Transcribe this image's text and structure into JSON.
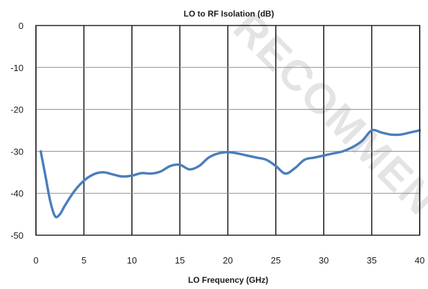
{
  "chart_data": {
    "type": "line",
    "title": "LO to RF Isolation (dB)",
    "xlabel": "LO Frequency (GHz)",
    "ylabel": "",
    "xlim": [
      0,
      40
    ],
    "ylim": [
      -50,
      0
    ],
    "xticks": [
      0,
      5,
      10,
      15,
      20,
      25,
      30,
      35,
      40
    ],
    "yticks": [
      0,
      -10,
      -20,
      -30,
      -40,
      -50
    ],
    "grid": true,
    "series": [
      {
        "color": "#4a7ebb",
        "x": [
          0.5,
          1.0,
          1.5,
          2.0,
          2.5,
          3.0,
          4.0,
          5.0,
          6.0,
          7.0,
          8.0,
          9.0,
          10.0,
          11.0,
          12.0,
          13.0,
          14.0,
          15.0,
          16.0,
          17.0,
          18.0,
          19.0,
          20.0,
          21.0,
          22.0,
          23.0,
          24.0,
          25.0,
          26.0,
          27.0,
          28.0,
          29.0,
          30.0,
          31.0,
          32.0,
          33.0,
          34.0,
          35.0,
          36.0,
          37.0,
          38.0,
          39.0,
          40.0
        ],
        "y": [
          -30,
          -36,
          -42,
          -45.5,
          -45,
          -43,
          -39.5,
          -37,
          -35.5,
          -35,
          -35.5,
          -36,
          -35.8,
          -35.2,
          -35.3,
          -34.8,
          -33.5,
          -33.2,
          -34.3,
          -33.5,
          -31.5,
          -30.5,
          -30.2,
          -30.5,
          -31,
          -31.5,
          -32,
          -33.5,
          -35.3,
          -34,
          -32,
          -31.5,
          -31,
          -30.5,
          -30,
          -29,
          -27.5,
          -25,
          -25.5,
          -26,
          -26,
          -25.5,
          -25
        ]
      }
    ]
  },
  "watermark": "RECOMMEN"
}
